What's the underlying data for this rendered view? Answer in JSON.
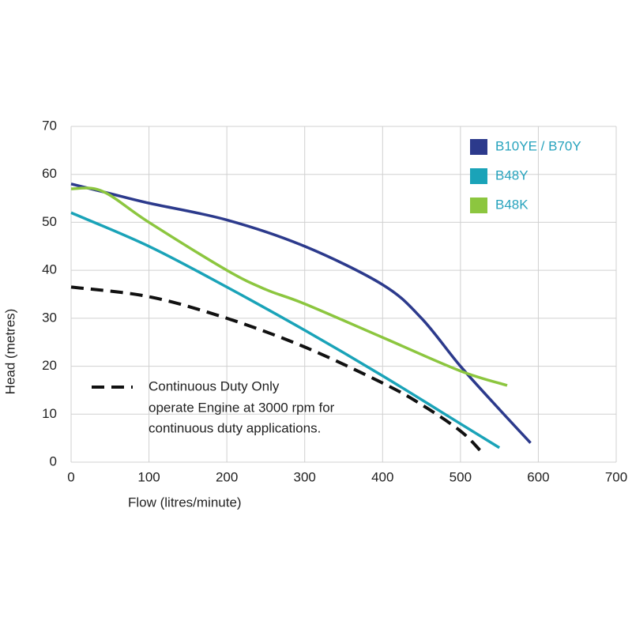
{
  "chart_data": {
    "type": "line",
    "x_label": "Flow (litres/minute)",
    "y_label": "Head (metres)",
    "xlim": [
      0,
      700
    ],
    "ylim": [
      0,
      70
    ],
    "xticks": [
      0,
      100,
      200,
      300,
      400,
      500,
      600,
      700
    ],
    "yticks": [
      0,
      10,
      20,
      30,
      40,
      50,
      60,
      70
    ],
    "grid": true,
    "legend": "upper right",
    "legend_text_color": "#27a3bd",
    "series": [
      {
        "name": "B10YE / B70Y",
        "color": "#2c3a8c",
        "dash": false,
        "in_legend": true,
        "x": [
          0,
          50,
          100,
          200,
          300,
          400,
          450,
          500,
          550,
          590
        ],
        "values": [
          58,
          56,
          54,
          50.5,
          45,
          37,
          30,
          20,
          11,
          4
        ]
      },
      {
        "name": "B48Y",
        "color": "#1aa3b8",
        "dash": false,
        "in_legend": true,
        "x": [
          0,
          100,
          200,
          300,
          400,
          500,
          550
        ],
        "values": [
          52,
          45,
          36.5,
          27.5,
          18,
          8,
          3
        ]
      },
      {
        "name": "B48K",
        "color": "#8cc63f",
        "dash": false,
        "in_legend": true,
        "x": [
          0,
          40,
          100,
          200,
          250,
          300,
          400,
          500,
          560
        ],
        "values": [
          57,
          56.5,
          50,
          40,
          36,
          33,
          26,
          19,
          16
        ]
      },
      {
        "name": "Continuous Duty Only",
        "color": "#111111",
        "dash": true,
        "in_legend": false,
        "x": [
          0,
          100,
          200,
          300,
          400,
          450,
          500,
          525
        ],
        "values": [
          36.5,
          34.5,
          30,
          24,
          16.5,
          12,
          6.5,
          2.5
        ]
      }
    ],
    "annotation_lines": [
      "operate Engine at 3000 rpm for",
      "continuous duty applications."
    ]
  }
}
